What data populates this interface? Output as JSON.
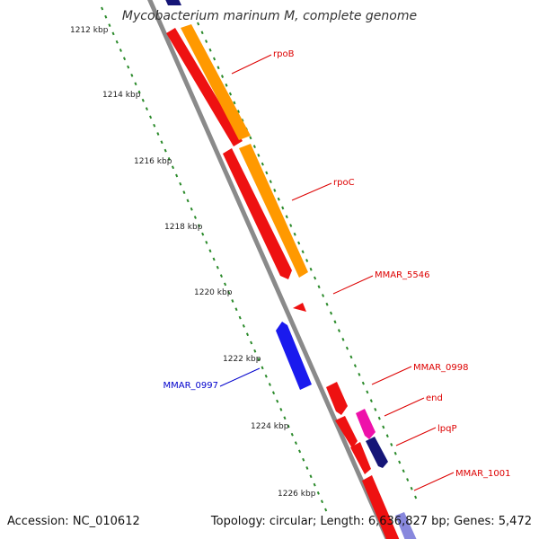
{
  "title": "Mycobacterium marinum M, complete genome",
  "footer": {
    "accession": "Accession: NC_010612",
    "summary": "Topology: circular; Length: 6,636,827 bp; Genes: 5,472"
  },
  "colors": {
    "backbone": "#8a8a8a",
    "tick": "#2a8a2a",
    "forward_red": "#ee1111",
    "forward_orange": "#ff9900",
    "reverse_blue": "#1a1aee",
    "magenta": "#ee11aa",
    "navy": "#151577",
    "gene_label_red": "#dd0000",
    "gene_label_blue": "#0000cc"
  },
  "ticks": [
    {
      "label": "1212 kbp"
    },
    {
      "label": "1214 kbp"
    },
    {
      "label": "1216 kbp"
    },
    {
      "label": "1218 kbp"
    },
    {
      "label": "1220 kbp"
    },
    {
      "label": "1222 kbp"
    },
    {
      "label": "1224 kbp"
    },
    {
      "label": "1226 kbp"
    }
  ],
  "genes": [
    {
      "name": "rpoB",
      "strand": "forward",
      "color": "#ee1111"
    },
    {
      "name": "rpoC",
      "strand": "forward",
      "color": "#ee1111"
    },
    {
      "name": "MMAR_5546",
      "strand": "forward",
      "color": "#ee1111"
    },
    {
      "name": "MMAR_0997",
      "strand": "reverse",
      "color": "#1a1aee"
    },
    {
      "name": "MMAR_0998",
      "strand": "forward",
      "color": "#ee1111"
    },
    {
      "name": "end",
      "strand": "forward",
      "color": "#ee11aa"
    },
    {
      "name": "lpqP",
      "strand": "forward",
      "color": "#151577"
    },
    {
      "name": "MMAR_1001",
      "strand": "forward",
      "color": "#ee1111"
    }
  ]
}
